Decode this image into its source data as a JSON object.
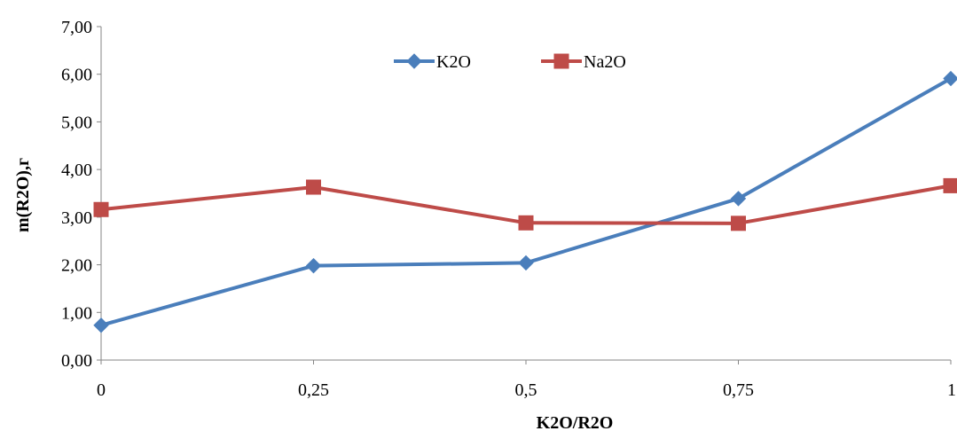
{
  "chart_data": {
    "type": "line",
    "title": "",
    "xlabel": "K2O/R2O",
    "ylabel": "m(R2O),г",
    "categories": [
      "0",
      "0,25",
      "0,5",
      "0,75",
      "1"
    ],
    "ylim": [
      0,
      7
    ],
    "yticks": [
      "0,00",
      "1,00",
      "2,00",
      "3,00",
      "4,00",
      "5,00",
      "6,00",
      "7,00"
    ],
    "grid": false,
    "legend_position": "top-center",
    "series": [
      {
        "name": "K2O",
        "color": "#4a7ebb",
        "marker": "diamond",
        "values": [
          0.73,
          1.98,
          2.04,
          3.39,
          5.91
        ]
      },
      {
        "name": "Na2O",
        "color": "#be4b48",
        "marker": "square",
        "values": [
          3.16,
          3.63,
          2.88,
          2.87,
          3.66
        ]
      }
    ]
  }
}
